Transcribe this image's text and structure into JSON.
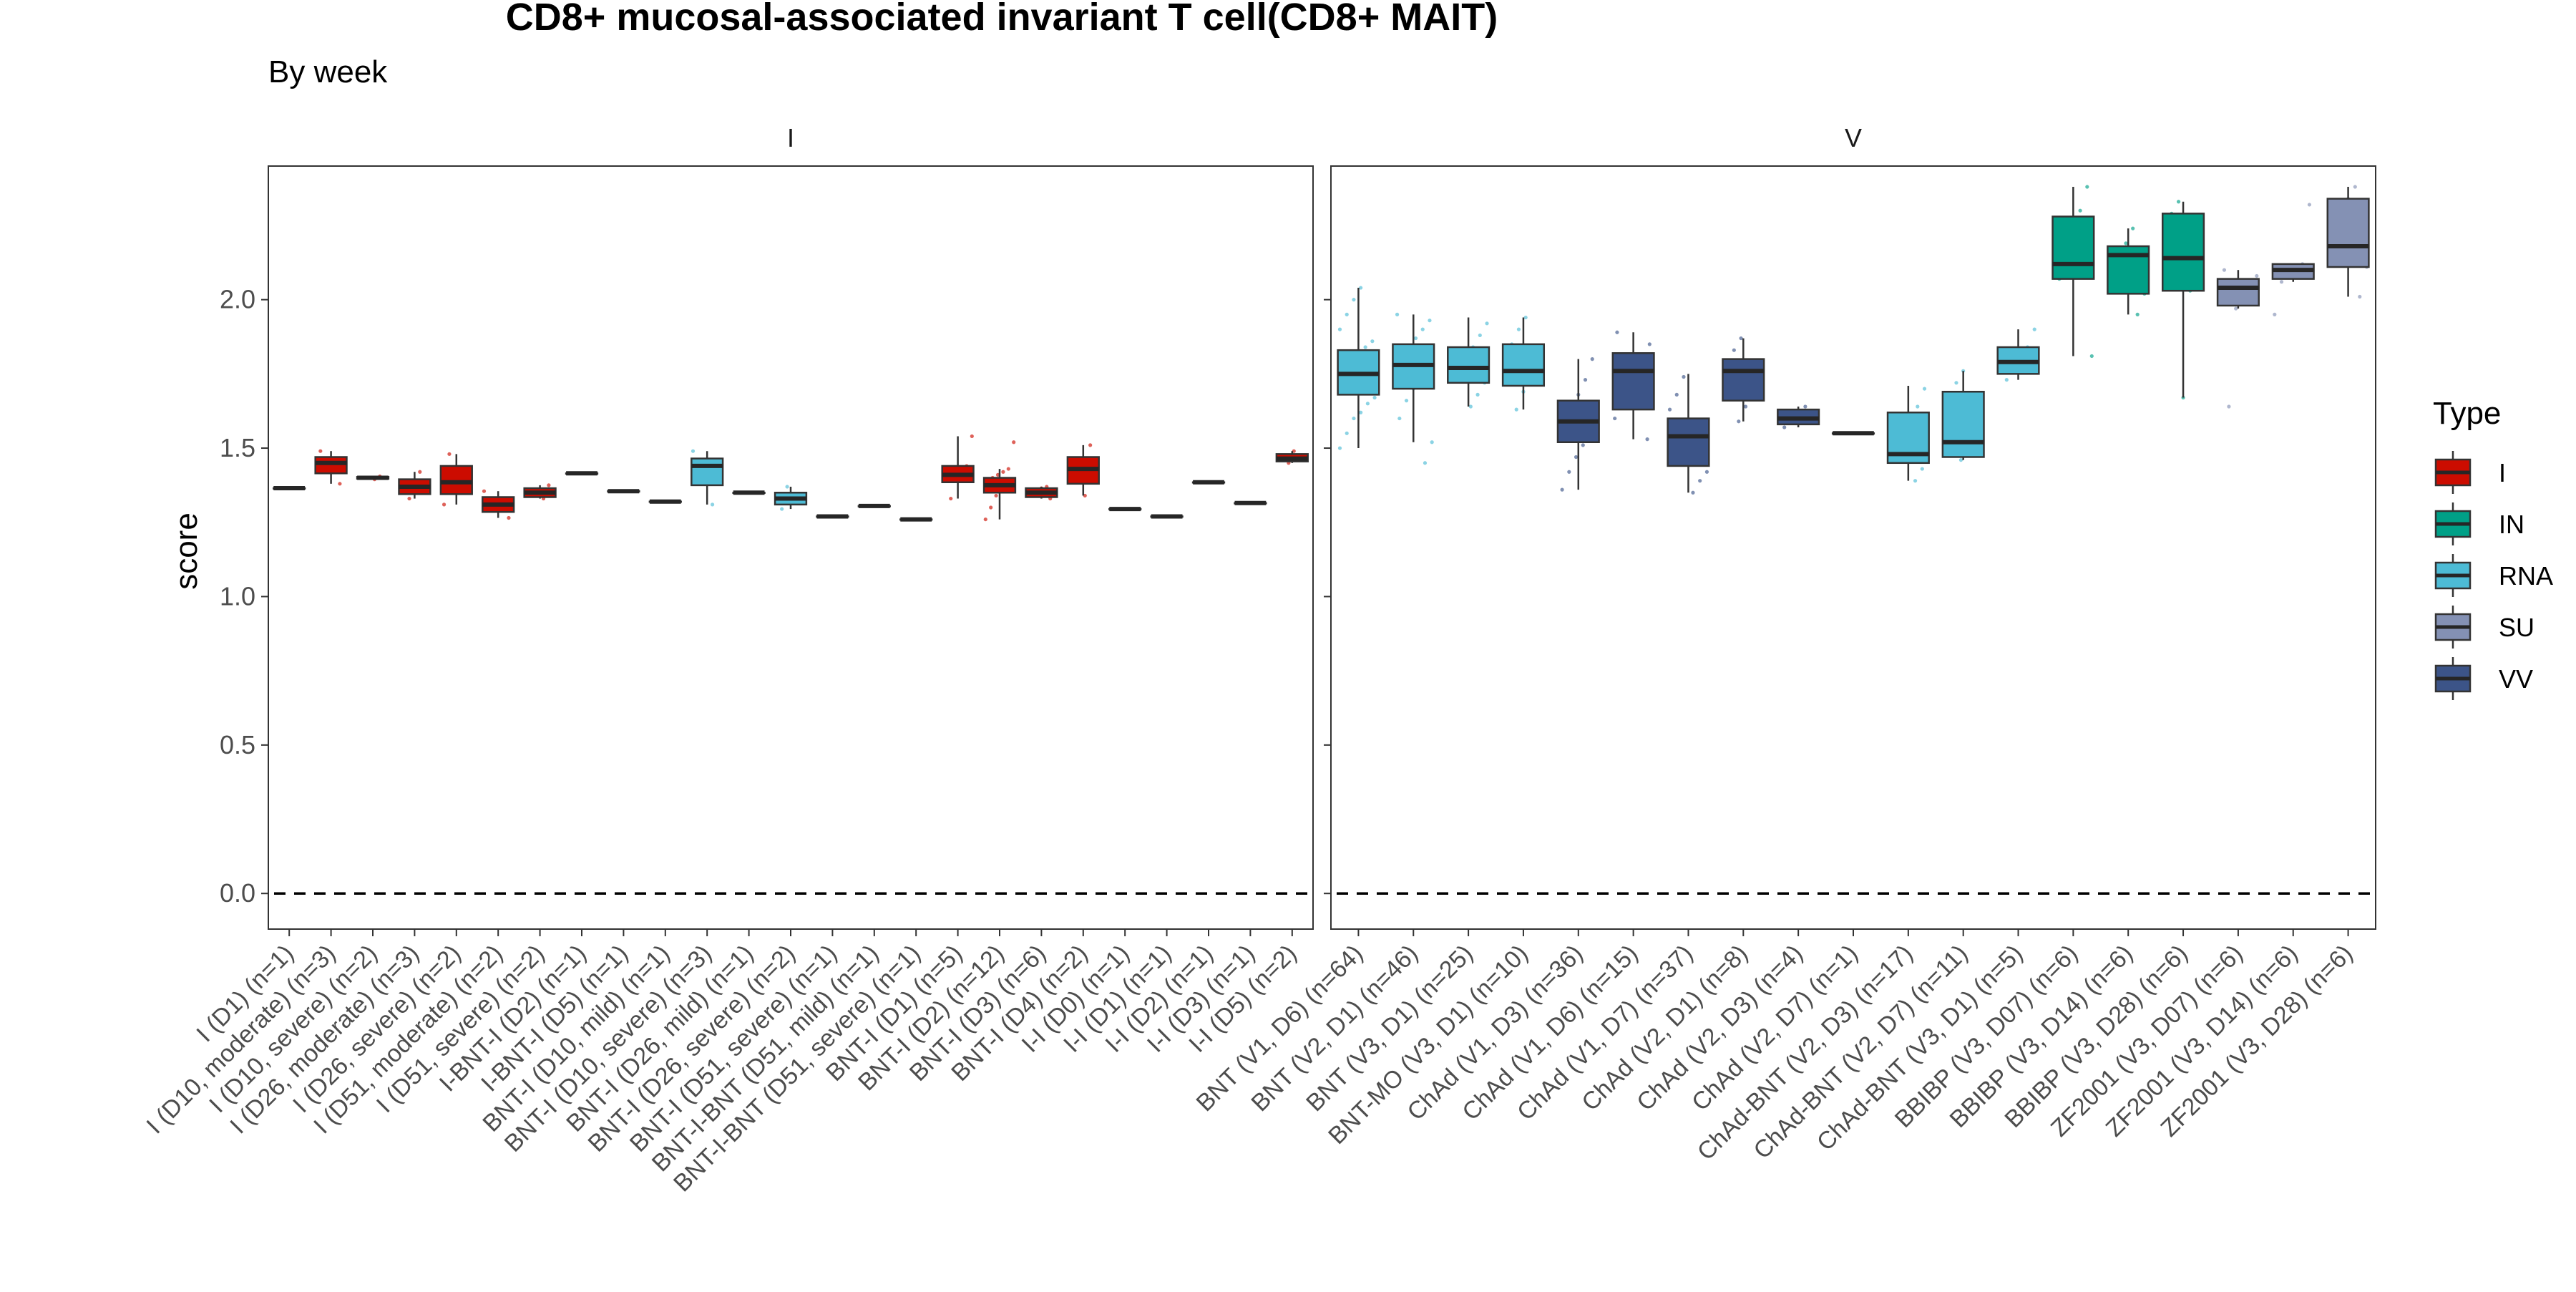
{
  "chart_data": {
    "type": "box",
    "title": "CD8+ mucosal-associated invariant T cell(CD8+ MAIT)",
    "subtitle": "By week",
    "ylabel": "score",
    "xlabel": "",
    "ylim": [
      -0.12,
      2.45
    ],
    "yticks": [
      0.0,
      0.5,
      1.0,
      1.5,
      2.0
    ],
    "ytick_labels": [
      "0.0",
      "0.5",
      "1.0",
      "1.5",
      "2.0"
    ],
    "reference_line": {
      "y": 0,
      "style": "dashed"
    },
    "grid": false,
    "legend": {
      "title": "Type",
      "position": "right",
      "items": [
        {
          "label": "I",
          "color": "#CC0C00"
        },
        {
          "label": "IN",
          "color": "#00A087"
        },
        {
          "label": "RNA",
          "color": "#4DBBD5"
        },
        {
          "label": "SU",
          "color": "#8491B4"
        },
        {
          "label": "VV",
          "color": "#3C5488"
        }
      ]
    },
    "panels": [
      {
        "strip": "I",
        "boxes": [
          {
            "label": "I (D1) (n=1)",
            "type": "I",
            "min": 1.365,
            "q1": 1.365,
            "median": 1.365,
            "q3": 1.365,
            "max": 1.365,
            "points": [
              1.365
            ]
          },
          {
            "label": "I (D10, moderate) (n=3)",
            "type": "I",
            "min": 1.38,
            "q1": 1.415,
            "median": 1.45,
            "q3": 1.47,
            "max": 1.49,
            "points": [
              1.38,
              1.45,
              1.49
            ]
          },
          {
            "label": "I (D10, severe) (n=2)",
            "type": "I",
            "min": 1.395,
            "q1": 1.397,
            "median": 1.4,
            "q3": 1.403,
            "max": 1.405,
            "points": [
              1.395,
              1.405
            ]
          },
          {
            "label": "I (D26, moderate) (n=3)",
            "type": "I",
            "min": 1.33,
            "q1": 1.345,
            "median": 1.37,
            "q3": 1.395,
            "max": 1.42,
            "points": [
              1.33,
              1.37,
              1.42
            ]
          },
          {
            "label": "I (D26, severe) (n=2)",
            "type": "I",
            "min": 1.31,
            "q1": 1.345,
            "median": 1.385,
            "q3": 1.44,
            "max": 1.48,
            "points": [
              1.31,
              1.48
            ]
          },
          {
            "label": "I (D51, moderate) (n=2)",
            "type": "I",
            "min": 1.265,
            "q1": 1.285,
            "median": 1.31,
            "q3": 1.335,
            "max": 1.355,
            "points": [
              1.265,
              1.355
            ]
          },
          {
            "label": "I (D51, severe) (n=2)",
            "type": "I",
            "min": 1.33,
            "q1": 1.335,
            "median": 1.35,
            "q3": 1.365,
            "max": 1.375,
            "points": [
              1.33,
              1.375
            ]
          },
          {
            "label": "I-BNT-I (D2) (n=1)",
            "type": "I",
            "min": 1.415,
            "q1": 1.415,
            "median": 1.415,
            "q3": 1.415,
            "max": 1.415,
            "points": [
              1.415
            ]
          },
          {
            "label": "I-BNT-I (D5) (n=1)",
            "type": "I",
            "min": 1.355,
            "q1": 1.355,
            "median": 1.355,
            "q3": 1.355,
            "max": 1.355,
            "points": [
              1.355
            ]
          },
          {
            "label": "BNT-I (D10, mild) (n=1)",
            "type": "RNA",
            "min": 1.32,
            "q1": 1.32,
            "median": 1.32,
            "q3": 1.32,
            "max": 1.32,
            "points": [
              1.32
            ]
          },
          {
            "label": "BNT-I (D10, severe) (n=3)",
            "type": "RNA",
            "min": 1.31,
            "q1": 1.375,
            "median": 1.44,
            "q3": 1.465,
            "max": 1.49,
            "points": [
              1.31,
              1.44,
              1.49
            ]
          },
          {
            "label": "BNT-I (D26, mild) (n=1)",
            "type": "RNA",
            "min": 1.35,
            "q1": 1.35,
            "median": 1.35,
            "q3": 1.35,
            "max": 1.35,
            "points": [
              1.35
            ]
          },
          {
            "label": "BNT-I (D26, severe) (n=2)",
            "type": "RNA",
            "min": 1.295,
            "q1": 1.31,
            "median": 1.33,
            "q3": 1.35,
            "max": 1.37,
            "points": [
              1.295,
              1.37
            ]
          },
          {
            "label": "BNT-I (D51, severe) (n=1)",
            "type": "RNA",
            "min": 1.27,
            "q1": 1.27,
            "median": 1.27,
            "q3": 1.27,
            "max": 1.27,
            "points": [
              1.27
            ]
          },
          {
            "label": "BNT-I-BNT (D51, mild) (n=1)",
            "type": "RNA",
            "min": 1.305,
            "q1": 1.305,
            "median": 1.305,
            "q3": 1.305,
            "max": 1.305,
            "points": [
              1.305
            ]
          },
          {
            "label": "BNT-I-BNT (D51, severe) (n=1)",
            "type": "RNA",
            "min": 1.26,
            "q1": 1.26,
            "median": 1.26,
            "q3": 1.26,
            "max": 1.26,
            "points": [
              1.26
            ]
          },
          {
            "label": "BNT-I (D1) (n=5)",
            "type": "I",
            "min": 1.33,
            "q1": 1.385,
            "median": 1.41,
            "q3": 1.44,
            "max": 1.54,
            "points": [
              1.33,
              1.39,
              1.41,
              1.44,
              1.54
            ]
          },
          {
            "label": "BNT-I (D2) (n=12)",
            "type": "I",
            "min": 1.26,
            "q1": 1.35,
            "median": 1.375,
            "q3": 1.4,
            "max": 1.43,
            "points": [
              1.26,
              1.3,
              1.34,
              1.36,
              1.37,
              1.38,
              1.39,
              1.4,
              1.41,
              1.42,
              1.43,
              1.52
            ]
          },
          {
            "label": "BNT-I (D3) (n=6)",
            "type": "I",
            "min": 1.33,
            "q1": 1.335,
            "median": 1.35,
            "q3": 1.365,
            "max": 1.37,
            "points": [
              1.33,
              1.34,
              1.35,
              1.355,
              1.365,
              1.37
            ]
          },
          {
            "label": "BNT-I (D4) (n=2)",
            "type": "I",
            "min": 1.34,
            "q1": 1.38,
            "median": 1.43,
            "q3": 1.47,
            "max": 1.51,
            "points": [
              1.34,
              1.51
            ]
          },
          {
            "label": "I-I (D0) (n=1)",
            "type": "I",
            "min": 1.295,
            "q1": 1.295,
            "median": 1.295,
            "q3": 1.295,
            "max": 1.295,
            "points": [
              1.295
            ]
          },
          {
            "label": "I-I (D1) (n=1)",
            "type": "I",
            "min": 1.27,
            "q1": 1.27,
            "median": 1.27,
            "q3": 1.27,
            "max": 1.27,
            "points": [
              1.27
            ]
          },
          {
            "label": "I-I (D2) (n=1)",
            "type": "I",
            "min": 1.385,
            "q1": 1.385,
            "median": 1.385,
            "q3": 1.385,
            "max": 1.385,
            "points": [
              1.385
            ]
          },
          {
            "label": "I-I (D3) (n=1)",
            "type": "I",
            "min": 1.315,
            "q1": 1.315,
            "median": 1.315,
            "q3": 1.315,
            "max": 1.315,
            "points": [
              1.315
            ]
          },
          {
            "label": "I-I (D5) (n=2)",
            "type": "I",
            "min": 1.45,
            "q1": 1.455,
            "median": 1.465,
            "q3": 1.48,
            "max": 1.49,
            "points": [
              1.45,
              1.49
            ]
          }
        ]
      },
      {
        "strip": "V",
        "boxes": [
          {
            "label": "BNT (V1, D6) (n=64)",
            "type": "RNA",
            "min": 1.5,
            "q1": 1.68,
            "median": 1.75,
            "q3": 1.83,
            "max": 2.04,
            "points": [
              1.5,
              1.55,
              1.6,
              1.62,
              1.65,
              1.67,
              1.69,
              1.7,
              1.72,
              1.74,
              1.75,
              1.76,
              1.78,
              1.8,
              1.82,
              1.84,
              1.86,
              1.9,
              1.95,
              2.0,
              2.04
            ]
          },
          {
            "label": "BNT (V2, D1) (n=46)",
            "type": "RNA",
            "min": 1.52,
            "q1": 1.7,
            "median": 1.78,
            "q3": 1.85,
            "max": 1.95,
            "points": [
              1.45,
              1.52,
              1.6,
              1.66,
              1.7,
              1.74,
              1.77,
              1.79,
              1.81,
              1.84,
              1.87,
              1.9,
              1.93,
              1.95
            ]
          },
          {
            "label": "BNT (V3, D1) (n=25)",
            "type": "RNA",
            "min": 1.64,
            "q1": 1.72,
            "median": 1.77,
            "q3": 1.84,
            "max": 1.94,
            "points": [
              1.64,
              1.68,
              1.72,
              1.75,
              1.77,
              1.8,
              1.84,
              1.88,
              1.92
            ]
          },
          {
            "label": "BNT-MO (V3, D1) (n=10)",
            "type": "RNA",
            "min": 1.63,
            "q1": 1.71,
            "median": 1.76,
            "q3": 1.85,
            "max": 1.94,
            "points": [
              1.63,
              1.69,
              1.73,
              1.76,
              1.8,
              1.85,
              1.9,
              1.94
            ]
          },
          {
            "label": "ChAd (V1, D3) (n=36)",
            "type": "VV",
            "min": 1.36,
            "q1": 1.52,
            "median": 1.59,
            "q3": 1.66,
            "max": 1.8,
            "points": [
              1.36,
              1.42,
              1.47,
              1.51,
              1.55,
              1.58,
              1.61,
              1.64,
              1.68,
              1.73,
              1.8
            ]
          },
          {
            "label": "ChAd (V1, D6) (n=15)",
            "type": "VV",
            "min": 1.53,
            "q1": 1.63,
            "median": 1.76,
            "q3": 1.82,
            "max": 1.89,
            "points": [
              1.53,
              1.6,
              1.68,
              1.74,
              1.78,
              1.81,
              1.85,
              1.89
            ]
          },
          {
            "label": "ChAd (V1, D7) (n=37)",
            "type": "VV",
            "min": 1.35,
            "q1": 1.44,
            "median": 1.54,
            "q3": 1.6,
            "max": 1.75,
            "points": [
              1.35,
              1.39,
              1.42,
              1.46,
              1.5,
              1.53,
              1.56,
              1.59,
              1.63,
              1.68,
              1.74
            ]
          },
          {
            "label": "ChAd (V2, D1) (n=8)",
            "type": "VV",
            "min": 1.59,
            "q1": 1.66,
            "median": 1.76,
            "q3": 1.8,
            "max": 1.87,
            "points": [
              1.59,
              1.64,
              1.7,
              1.76,
              1.79,
              1.83,
              1.87
            ]
          },
          {
            "label": "ChAd (V2, D3) (n=4)",
            "type": "VV",
            "min": 1.57,
            "q1": 1.58,
            "median": 1.6,
            "q3": 1.63,
            "max": 1.64,
            "points": [
              1.57,
              1.59,
              1.62,
              1.64
            ]
          },
          {
            "label": "ChAd (V2, D7) (n=1)",
            "type": "VV",
            "min": 1.55,
            "q1": 1.55,
            "median": 1.55,
            "q3": 1.55,
            "max": 1.55,
            "points": [
              1.55
            ]
          },
          {
            "label": "ChAd-BNT (V2, D3) (n=17)",
            "type": "RNA",
            "min": 1.39,
            "q1": 1.45,
            "median": 1.48,
            "q3": 1.62,
            "max": 1.71,
            "points": [
              1.39,
              1.43,
              1.46,
              1.48,
              1.52,
              1.58,
              1.64,
              1.7
            ]
          },
          {
            "label": "ChAd-BNT (V2, D7) (n=11)",
            "type": "RNA",
            "min": 1.46,
            "q1": 1.47,
            "median": 1.52,
            "q3": 1.69,
            "max": 1.76,
            "points": [
              1.46,
              1.49,
              1.52,
              1.58,
              1.66,
              1.72,
              1.76
            ]
          },
          {
            "label": "ChAd-BNT (V3, D1) (n=5)",
            "type": "RNA",
            "min": 1.73,
            "q1": 1.75,
            "median": 1.79,
            "q3": 1.84,
            "max": 1.9,
            "points": [
              1.73,
              1.76,
              1.79,
              1.84,
              1.9
            ]
          },
          {
            "label": "BBIBP (V3, D07) (n=6)",
            "type": "IN",
            "min": 1.81,
            "q1": 2.07,
            "median": 2.12,
            "q3": 2.28,
            "max": 2.38,
            "points": [
              1.81,
              2.07,
              2.11,
              2.14,
              2.3,
              2.38
            ]
          },
          {
            "label": "BBIBP (V3, D14) (n=6)",
            "type": "IN",
            "min": 1.95,
            "q1": 2.02,
            "median": 2.15,
            "q3": 2.18,
            "max": 2.24,
            "points": [
              1.95,
              2.02,
              2.13,
              2.16,
              2.19,
              2.24
            ]
          },
          {
            "label": "BBIBP (V3, D28) (n=6)",
            "type": "IN",
            "min": 1.67,
            "q1": 2.03,
            "median": 2.14,
            "q3": 2.29,
            "max": 2.33,
            "points": [
              1.67,
              2.03,
              2.1,
              2.17,
              2.29,
              2.33
            ]
          },
          {
            "label": "ZF2001 (V3, D07) (n=6)",
            "type": "SU",
            "min": 1.97,
            "q1": 1.98,
            "median": 2.04,
            "q3": 2.07,
            "max": 2.1,
            "points": [
              1.64,
              1.97,
              2.02,
              2.05,
              2.08,
              2.1
            ]
          },
          {
            "label": "ZF2001 (V3, D14) (n=6)",
            "type": "SU",
            "min": 2.06,
            "q1": 2.07,
            "median": 2.1,
            "q3": 2.12,
            "max": 2.12,
            "points": [
              1.95,
              2.06,
              2.08,
              2.1,
              2.12,
              2.32
            ]
          },
          {
            "label": "ZF2001 (V3, D28) (n=6)",
            "type": "SU",
            "min": 2.01,
            "q1": 2.11,
            "median": 2.18,
            "q3": 2.34,
            "max": 2.38,
            "points": [
              2.01,
              2.11,
              2.16,
              2.2,
              2.34,
              2.38
            ]
          }
        ]
      }
    ]
  }
}
